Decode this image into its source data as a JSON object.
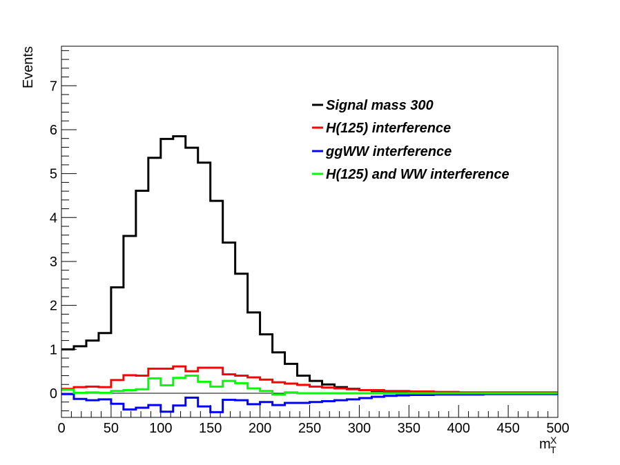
{
  "chart_data": {
    "type": "line",
    "style": "step-histogram",
    "ylabel": "Events",
    "xlabel": {
      "base": "m",
      "sub": "T",
      "sup": "X"
    },
    "xlim": [
      0,
      500
    ],
    "ylim": [
      -0.55,
      7.9
    ],
    "xticks": [
      0,
      50,
      100,
      150,
      200,
      250,
      300,
      350,
      400,
      450,
      500
    ],
    "yticks": [
      0,
      1,
      2,
      3,
      4,
      5,
      6,
      7
    ],
    "bin_edges": [
      0,
      12.5,
      25,
      37.5,
      50,
      62.5,
      75,
      87.5,
      100,
      112.5,
      125,
      137.5,
      150,
      162.5,
      175,
      187.5,
      200,
      212.5,
      225,
      237.5,
      250,
      262.5,
      275,
      287.5,
      300,
      312.5,
      325,
      337.5,
      350,
      362.5,
      375,
      387.5,
      400,
      412.5,
      425,
      437.5,
      450,
      462.5,
      475,
      487.5,
      500
    ],
    "legend_position": "top-right",
    "zero_line": true,
    "series": [
      {
        "name": "Signal mass 300",
        "color": "#000000",
        "values": [
          1.0,
          1.07,
          1.2,
          1.37,
          2.41,
          3.58,
          4.61,
          5.36,
          5.79,
          5.85,
          5.59,
          5.25,
          4.38,
          3.43,
          2.72,
          1.84,
          1.34,
          0.93,
          0.67,
          0.4,
          0.28,
          0.2,
          0.14,
          0.1,
          0.07,
          0.05,
          0.04,
          0.03,
          0.02,
          0.02,
          0.02,
          0.01,
          0.01,
          0.01,
          0.01,
          0.01,
          0.01,
          0.01,
          0.01,
          0.01
        ]
      },
      {
        "name": "H(125) interference",
        "color": "#ff0000",
        "values": [
          0.1,
          0.14,
          0.15,
          0.14,
          0.3,
          0.41,
          0.4,
          0.56,
          0.56,
          0.61,
          0.5,
          0.58,
          0.58,
          0.43,
          0.4,
          0.36,
          0.31,
          0.25,
          0.22,
          0.19,
          0.15,
          0.13,
          0.11,
          0.09,
          0.07,
          0.07,
          0.05,
          0.05,
          0.04,
          0.04,
          0.03,
          0.03,
          0.02,
          0.02,
          0.02,
          0.02,
          0.02,
          0.02,
          0.02,
          0.02
        ]
      },
      {
        "name": "ggWW interference",
        "color": "#0000ff",
        "values": [
          -0.02,
          -0.13,
          -0.16,
          -0.14,
          -0.24,
          -0.37,
          -0.33,
          -0.27,
          -0.42,
          -0.28,
          -0.1,
          -0.3,
          -0.43,
          -0.15,
          -0.16,
          -0.25,
          -0.2,
          -0.27,
          -0.22,
          -0.22,
          -0.2,
          -0.18,
          -0.16,
          -0.14,
          -0.11,
          -0.08,
          -0.06,
          -0.05,
          -0.04,
          -0.04,
          -0.03,
          -0.03,
          -0.03,
          -0.03,
          -0.02,
          -0.02,
          -0.02,
          -0.02,
          -0.02,
          -0.02
        ]
      },
      {
        "name": "H(125) and WW interference",
        "color": "#00ff00",
        "values": [
          0.08,
          0.01,
          0.02,
          0.01,
          0.05,
          0.07,
          0.09,
          0.34,
          0.18,
          0.35,
          0.4,
          0.26,
          0.15,
          0.28,
          0.23,
          0.11,
          0.05,
          -0.03,
          0.02,
          0.0,
          0.0,
          0.0,
          0.0,
          0.0,
          0.0,
          0.0,
          0.0,
          0.0,
          0.0,
          0.0,
          0.0,
          0.0,
          0.0,
          0.0,
          0.0,
          0.0,
          0.0,
          0.0,
          0.0,
          0.0
        ]
      }
    ]
  }
}
